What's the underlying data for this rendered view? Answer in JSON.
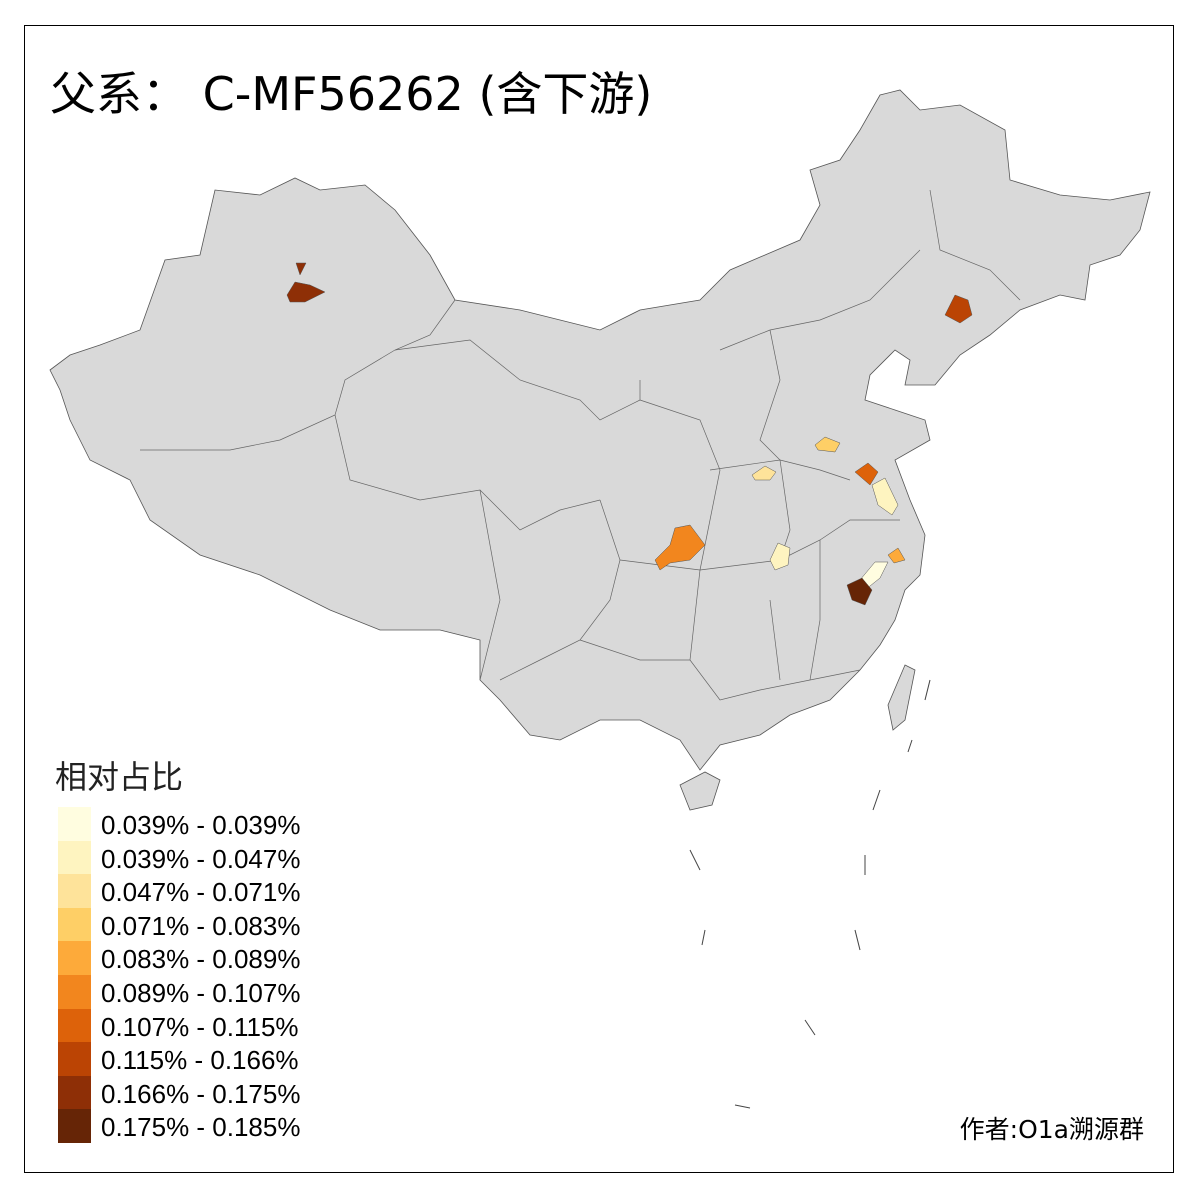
{
  "title": "父系： C-MF56262 (含下游)",
  "legend": {
    "title": "相对占比",
    "items": [
      {
        "label": "0.039% - 0.039%",
        "color": "#FFFDE0"
      },
      {
        "label": "0.039% - 0.047%",
        "color": "#FEF4C0"
      },
      {
        "label": "0.047% - 0.071%",
        "color": "#FEE39A"
      },
      {
        "label": "0.071% - 0.083%",
        "color": "#FECF66"
      },
      {
        "label": "0.083% - 0.089%",
        "color": "#FDAA3A"
      },
      {
        "label": "0.089% - 0.107%",
        "color": "#F2861E"
      },
      {
        "label": "0.107% - 0.115%",
        "color": "#DD620A"
      },
      {
        "label": "0.115% - 0.166%",
        "color": "#BB4404"
      },
      {
        "label": "0.166% - 0.175%",
        "color": "#8E2F06"
      },
      {
        "label": "0.175% - 0.185%",
        "color": "#662506"
      }
    ]
  },
  "map": {
    "base_color": "#D9D9D9",
    "border_color": "#555555"
  },
  "author": "作者:O1a溯源群"
}
